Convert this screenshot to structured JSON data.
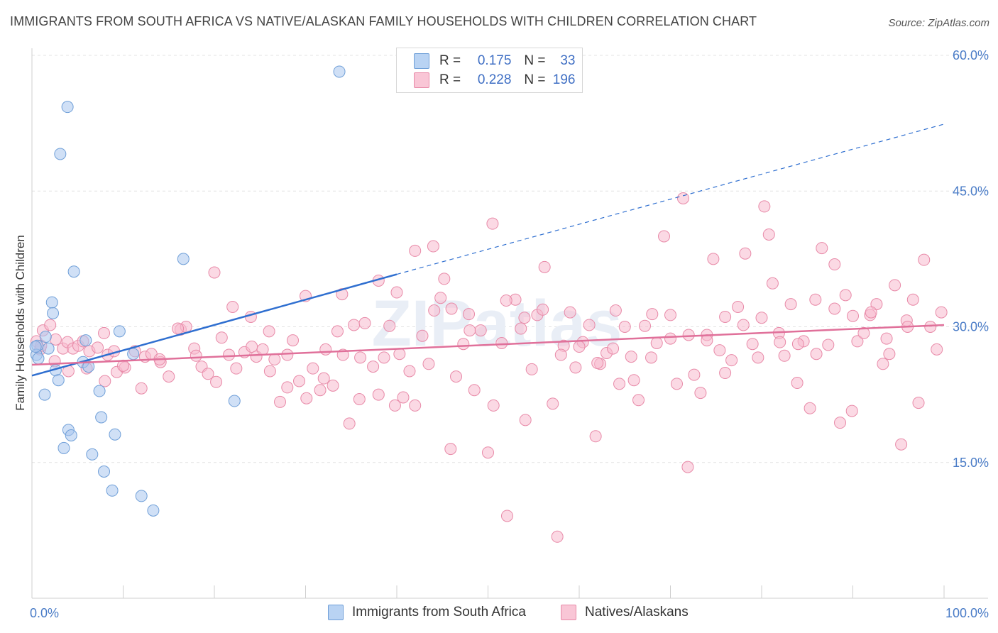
{
  "title": "IMMIGRANTS FROM SOUTH AFRICA VS NATIVE/ALASKAN FAMILY HOUSEHOLDS WITH CHILDREN CORRELATION CHART",
  "source": "Source: ZipAtlas.com",
  "watermark": "ZIPatlas",
  "legend": {
    "rows": [
      {
        "r_label": "R =",
        "r_value": "0.175",
        "n_label": "N =",
        "n_value": "33"
      },
      {
        "r_label": "R =",
        "r_value": "0.228",
        "n_label": "N =",
        "n_value": "196"
      }
    ]
  },
  "bottom_legend": [
    "Immigrants from South Africa",
    "Natives/Alaskans"
  ],
  "chart_data": {
    "type": "scatter",
    "ylabel": "Family Households with Children",
    "xlim": [
      0,
      100
    ],
    "ylim": [
      0,
      63
    ],
    "x_tick_labels": [
      "0.0%",
      "100.0%"
    ],
    "y_ticks": [
      15,
      30,
      45,
      60
    ],
    "y_tick_labels": [
      "15.0%",
      "30.0%",
      "45.0%",
      "60.0%"
    ],
    "grid": "horizontal dashed",
    "colors": {
      "series1_fill": "#a9c6ef",
      "series1_stroke": "#6f9fd8",
      "series1_line": "#2f6fd0",
      "series2_fill": "#f7b9cd",
      "series2_stroke": "#e88aa8",
      "series2_line": "#e0709a",
      "tick_text": "#4a7cc7"
    },
    "series": [
      {
        "name": "Immigrants from South Africa",
        "trend": {
          "x0": 0,
          "y0": 24.6,
          "x1": 40.0,
          "y1": 35.8,
          "dash_to_x": 100,
          "dash_to_y": 52.4
        },
        "points": [
          [
            33.7,
            58.2
          ],
          [
            3.9,
            54.3
          ],
          [
            3.1,
            49.1
          ],
          [
            0.6,
            27.9
          ],
          [
            0.5,
            26.9
          ],
          [
            0.4,
            27.8
          ],
          [
            0.7,
            26.5
          ],
          [
            1.5,
            28.9
          ],
          [
            1.8,
            27.6
          ],
          [
            2.2,
            32.7
          ],
          [
            2.3,
            31.5
          ],
          [
            2.6,
            25.2
          ],
          [
            2.9,
            24.1
          ],
          [
            1.4,
            22.5
          ],
          [
            4.6,
            36.1
          ],
          [
            5.6,
            26.1
          ],
          [
            5.9,
            28.5
          ],
          [
            6.2,
            25.6
          ],
          [
            7.4,
            22.9
          ],
          [
            7.6,
            20.0
          ],
          [
            9.1,
            18.1
          ],
          [
            4.0,
            18.6
          ],
          [
            4.3,
            18.0
          ],
          [
            3.5,
            16.6
          ],
          [
            6.6,
            15.9
          ],
          [
            7.9,
            14.0
          ],
          [
            8.8,
            11.9
          ],
          [
            12.0,
            11.3
          ],
          [
            13.3,
            9.7
          ],
          [
            16.6,
            37.5
          ],
          [
            11.1,
            27.0
          ],
          [
            9.6,
            29.5
          ],
          [
            22.2,
            21.8
          ]
        ]
      },
      {
        "name": "Natives/Alaskans",
        "trend": {
          "x0": 0,
          "y0": 25.8,
          "x1": 100,
          "y1": 30.2
        },
        "points": [
          [
            0.5,
            28.4
          ],
          [
            0.9,
            27.5
          ],
          [
            1.2,
            29.6
          ],
          [
            2.0,
            30.2
          ],
          [
            2.6,
            28.6
          ],
          [
            3.4,
            27.6
          ],
          [
            3.9,
            28.3
          ],
          [
            4.5,
            27.6
          ],
          [
            5.1,
            27.9
          ],
          [
            5.6,
            28.4
          ],
          [
            6.3,
            27.3
          ],
          [
            7.2,
            27.7
          ],
          [
            7.9,
            29.3
          ],
          [
            8.3,
            26.9
          ],
          [
            9.0,
            27.3
          ],
          [
            9.3,
            25.0
          ],
          [
            10.2,
            25.5
          ],
          [
            11.3,
            27.3
          ],
          [
            12.4,
            26.7
          ],
          [
            13.1,
            27.0
          ],
          [
            14.1,
            26.1
          ],
          [
            15.0,
            24.5
          ],
          [
            16.3,
            29.7
          ],
          [
            16.9,
            30.0
          ],
          [
            17.8,
            27.6
          ],
          [
            18.6,
            25.6
          ],
          [
            19.3,
            24.8
          ],
          [
            20.2,
            23.9
          ],
          [
            20.8,
            28.8
          ],
          [
            21.6,
            26.9
          ],
          [
            22.4,
            25.4
          ],
          [
            23.3,
            27.2
          ],
          [
            24.1,
            27.8
          ],
          [
            24.6,
            26.7
          ],
          [
            25.3,
            27.5
          ],
          [
            26.1,
            25.1
          ],
          [
            26.6,
            26.4
          ],
          [
            27.2,
            21.7
          ],
          [
            28.0,
            23.3
          ],
          [
            28.6,
            28.5
          ],
          [
            29.3,
            24.0
          ],
          [
            30.1,
            22.1
          ],
          [
            30.8,
            25.4
          ],
          [
            31.6,
            23.0
          ],
          [
            32.2,
            27.5
          ],
          [
            33.0,
            23.5
          ],
          [
            33.5,
            29.5
          ],
          [
            34.1,
            26.9
          ],
          [
            34.8,
            19.3
          ],
          [
            35.3,
            30.2
          ],
          [
            35.9,
            22.0
          ],
          [
            36.5,
            30.4
          ],
          [
            37.4,
            25.6
          ],
          [
            38.0,
            22.5
          ],
          [
            38.6,
            26.6
          ],
          [
            39.2,
            30.1
          ],
          [
            39.8,
            21.3
          ],
          [
            40.3,
            27.0
          ],
          [
            40.7,
            22.2
          ],
          [
            41.4,
            25.1
          ],
          [
            42.0,
            21.3
          ],
          [
            42.8,
            29.0
          ],
          [
            43.5,
            25.9
          ],
          [
            44.1,
            31.8
          ],
          [
            44.8,
            33.2
          ],
          [
            45.2,
            35.3
          ],
          [
            45.9,
            16.5
          ],
          [
            46.5,
            24.5
          ],
          [
            47.3,
            28.1
          ],
          [
            47.9,
            31.4
          ],
          [
            48.5,
            23.0
          ],
          [
            49.2,
            29.6
          ],
          [
            50.0,
            16.1
          ],
          [
            50.6,
            21.3
          ],
          [
            51.5,
            28.2
          ],
          [
            52.1,
            9.1
          ],
          [
            53.0,
            33.0
          ],
          [
            53.6,
            29.8
          ],
          [
            54.1,
            19.7
          ],
          [
            54.8,
            25.3
          ],
          [
            55.4,
            31.3
          ],
          [
            56.2,
            36.6
          ],
          [
            57.1,
            21.5
          ],
          [
            57.6,
            6.8
          ],
          [
            58.3,
            27.9
          ],
          [
            59.0,
            31.6
          ],
          [
            59.6,
            25.5
          ],
          [
            60.4,
            28.3
          ],
          [
            61.1,
            30.2
          ],
          [
            61.8,
            17.9
          ],
          [
            62.3,
            25.9
          ],
          [
            63.0,
            27.1
          ],
          [
            63.7,
            27.6
          ],
          [
            64.4,
            23.7
          ],
          [
            65.0,
            30.0
          ],
          [
            65.7,
            26.7
          ],
          [
            66.5,
            21.9
          ],
          [
            67.2,
            30.1
          ],
          [
            67.9,
            26.6
          ],
          [
            68.5,
            28.2
          ],
          [
            69.3,
            40.0
          ],
          [
            70.0,
            28.7
          ],
          [
            70.7,
            23.7
          ],
          [
            71.4,
            44.2
          ],
          [
            71.9,
            14.5
          ],
          [
            72.6,
            24.7
          ],
          [
            73.3,
            22.7
          ],
          [
            74.0,
            29.1
          ],
          [
            74.7,
            37.5
          ],
          [
            75.4,
            27.4
          ],
          [
            76.0,
            31.1
          ],
          [
            76.7,
            26.3
          ],
          [
            77.4,
            32.2
          ],
          [
            78.2,
            38.1
          ],
          [
            79.0,
            28.1
          ],
          [
            79.6,
            26.6
          ],
          [
            80.3,
            43.3
          ],
          [
            80.8,
            40.2
          ],
          [
            81.2,
            34.8
          ],
          [
            81.9,
            29.3
          ],
          [
            82.5,
            26.8
          ],
          [
            83.2,
            32.5
          ],
          [
            83.9,
            23.8
          ],
          [
            84.6,
            28.4
          ],
          [
            85.3,
            21.0
          ],
          [
            85.9,
            33.0
          ],
          [
            86.6,
            38.7
          ],
          [
            87.3,
            28.0
          ],
          [
            88.0,
            36.9
          ],
          [
            88.6,
            19.4
          ],
          [
            89.2,
            33.5
          ],
          [
            89.9,
            20.7
          ],
          [
            90.5,
            28.4
          ],
          [
            91.2,
            29.3
          ],
          [
            91.9,
            31.3
          ],
          [
            92.6,
            32.5
          ],
          [
            93.3,
            25.9
          ],
          [
            94.0,
            27.0
          ],
          [
            94.6,
            34.6
          ],
          [
            95.3,
            17.0
          ],
          [
            95.9,
            30.7
          ],
          [
            96.6,
            33.0
          ],
          [
            97.2,
            21.6
          ],
          [
            97.8,
            37.4
          ],
          [
            98.5,
            30.0
          ],
          [
            99.2,
            27.5
          ],
          [
            99.7,
            31.6
          ],
          [
            96.0,
            30.0
          ],
          [
            93.7,
            28.7
          ],
          [
            92.0,
            31.6
          ],
          [
            90.0,
            31.2
          ],
          [
            88.0,
            32.0
          ],
          [
            86.0,
            27.0
          ],
          [
            84.0,
            28.1
          ],
          [
            82.0,
            28.3
          ],
          [
            80.0,
            31.0
          ],
          [
            78.0,
            30.2
          ],
          [
            76.0,
            24.9
          ],
          [
            74.0,
            28.5
          ],
          [
            72.0,
            29.1
          ],
          [
            70.0,
            31.3
          ],
          [
            68.0,
            31.4
          ],
          [
            66.0,
            24.1
          ],
          [
            64.0,
            31.8
          ],
          [
            62.0,
            26.0
          ],
          [
            60.0,
            27.8
          ],
          [
            58.0,
            26.9
          ],
          [
            56.0,
            31.9
          ],
          [
            54.0,
            31.0
          ],
          [
            52.0,
            32.9
          ],
          [
            50.5,
            41.4
          ],
          [
            48.0,
            29.6
          ],
          [
            46.0,
            32.0
          ],
          [
            44.0,
            38.9
          ],
          [
            42.0,
            38.4
          ],
          [
            40.0,
            33.8
          ],
          [
            38.0,
            35.1
          ],
          [
            36.0,
            26.6
          ],
          [
            34.0,
            33.6
          ],
          [
            32.0,
            24.3
          ],
          [
            30.0,
            33.4
          ],
          [
            28.0,
            26.9
          ],
          [
            26.0,
            29.5
          ],
          [
            24.0,
            31.1
          ],
          [
            22.0,
            32.2
          ],
          [
            20.0,
            36.0
          ],
          [
            18.0,
            26.8
          ],
          [
            16.0,
            29.8
          ],
          [
            14.0,
            26.4
          ],
          [
            12.0,
            23.2
          ],
          [
            10.0,
            25.7
          ],
          [
            8.0,
            24.0
          ],
          [
            6.0,
            25.4
          ],
          [
            4.0,
            25.1
          ],
          [
            2.5,
            26.2
          ],
          [
            1.0,
            27.9
          ]
        ]
      }
    ]
  }
}
